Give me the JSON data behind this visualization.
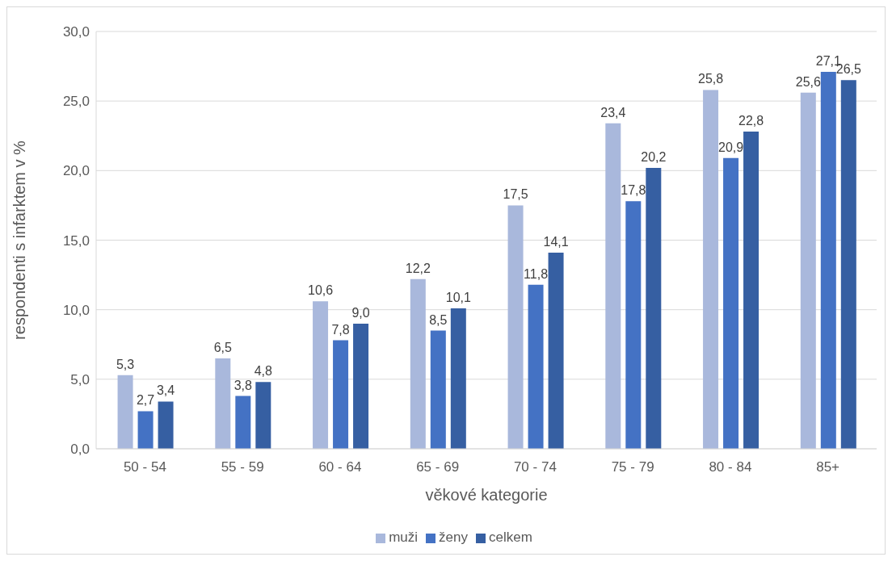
{
  "chart_data": {
    "type": "bar",
    "xlabel": "věkové kategorie",
    "ylabel": "respondenti s infarktem v %",
    "categories": [
      "50 - 54",
      "55 - 59",
      "60 - 64",
      "65 - 69",
      "70 - 74",
      "75 - 79",
      "80 - 84",
      "85+"
    ],
    "series": [
      {
        "name": "muži",
        "color": "#a9b8dc",
        "values": [
          5.3,
          6.5,
          10.6,
          12.2,
          17.5,
          23.4,
          25.8,
          25.6
        ],
        "value_labels": [
          "5,3",
          "6,5",
          "10,6",
          "12,2",
          "17,5",
          "23,4",
          "25,8",
          "25,6"
        ]
      },
      {
        "name": "ženy",
        "color": "#4472c4",
        "values": [
          2.7,
          3.8,
          7.8,
          8.5,
          11.8,
          17.8,
          20.9,
          27.1
        ],
        "value_labels": [
          "2,7",
          "3,8",
          "7,8",
          "8,5",
          "11,8",
          "17,8",
          "20,9",
          "27,1"
        ]
      },
      {
        "name": "celkem",
        "color": "#365fa2",
        "values": [
          3.4,
          4.8,
          9.0,
          10.1,
          14.1,
          20.2,
          22.8,
          26.5
        ],
        "value_labels": [
          "3,4",
          "4,8",
          "9,0",
          "10,1",
          "14,1",
          "20,2",
          "22,8",
          "26,5"
        ]
      }
    ],
    "ylim": [
      0,
      30
    ],
    "yticks": [
      {
        "value": 0,
        "label": "0,0"
      },
      {
        "value": 5,
        "label": "5,0"
      },
      {
        "value": 10,
        "label": "10,0"
      },
      {
        "value": 15,
        "label": "15,0"
      },
      {
        "value": 20,
        "label": "20,0"
      },
      {
        "value": 25,
        "label": "25,0"
      },
      {
        "value": 30,
        "label": "30,0"
      }
    ],
    "grid": "y",
    "legend": "bottom"
  }
}
